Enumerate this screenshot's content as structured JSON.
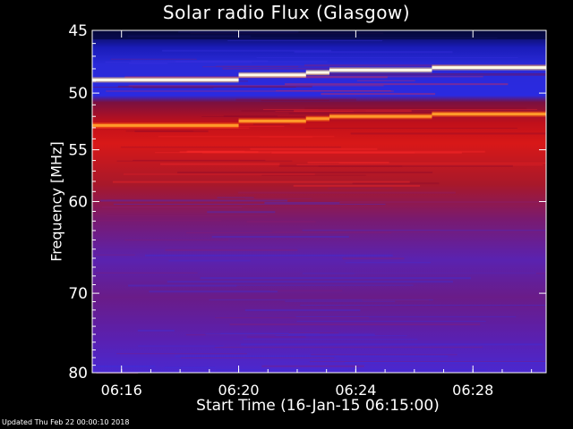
{
  "chart_data": {
    "type": "heatmap",
    "title": "Solar radio Flux (Glasgow)",
    "xlabel": "Start Time (16-Jan-15 06:15:00)",
    "ylabel": "Frequency [MHz]",
    "x_unit": "minutes after 06:15:00",
    "xlim": [
      0,
      15.5
    ],
    "ylim": [
      45,
      80
    ],
    "y_scale": "log",
    "x_ticks": [
      {
        "label": "06:16",
        "value": 1
      },
      {
        "label": "06:20",
        "value": 5
      },
      {
        "label": "06:24",
        "value": 9
      },
      {
        "label": "06:28",
        "value": 13
      }
    ],
    "y_ticks": [
      {
        "label": "45",
        "value": 45
      },
      {
        "label": "50",
        "value": 50
      },
      {
        "label": "55",
        "value": 55
      },
      {
        "label": "60",
        "value": 60
      },
      {
        "label": "70",
        "value": 70
      },
      {
        "label": "80",
        "value": 80
      }
    ],
    "emission_lines": [
      {
        "color": "#fffbe8",
        "segments": [
          {
            "t0": 0,
            "t1": 5,
            "freq": 48.9
          },
          {
            "t0": 5,
            "t1": 7.3,
            "freq": 48.5
          },
          {
            "t0": 7.3,
            "t1": 8.1,
            "freq": 48.3
          },
          {
            "t0": 8.1,
            "t1": 11.6,
            "freq": 48.1
          },
          {
            "t0": 11.6,
            "t1": 15.5,
            "freq": 47.9
          }
        ]
      },
      {
        "color": "#ff9a2a",
        "segments": [
          {
            "t0": 0,
            "t1": 5,
            "freq": 52.8
          },
          {
            "t0": 5,
            "t1": 7.3,
            "freq": 52.4
          },
          {
            "t0": 7.3,
            "t1": 8.1,
            "freq": 52.2
          },
          {
            "t0": 8.1,
            "t1": 11.6,
            "freq": 52.0
          },
          {
            "t0": 11.6,
            "t1": 15.5,
            "freq": 51.8
          }
        ]
      }
    ],
    "colormap": [
      "#000010",
      "#16189a",
      "#3a2ae0",
      "#7a1a9c",
      "#c0101e",
      "#e01818",
      "#ff8a20",
      "#ffffff"
    ],
    "grid": false
  },
  "footer": {
    "updated": "Updated Thu Feb 22 00:00:10 2018"
  }
}
